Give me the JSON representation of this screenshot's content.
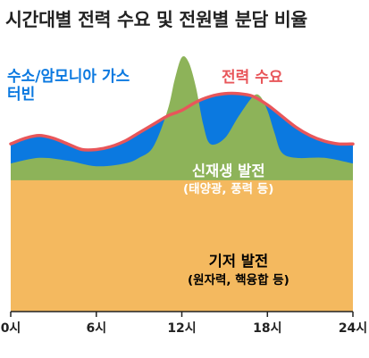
{
  "title": "시간대별 전력 수요 및 전원별 분담 비율",
  "chart_data": {
    "type": "area",
    "title": "시간대별 전력 수요 및 전원별 분담 비율",
    "x_ticks": [
      "0시",
      "6시",
      "12시",
      "18시",
      "24시"
    ],
    "x_tick_values": [
      0,
      6,
      12,
      18,
      24
    ],
    "xlim": [
      0,
      24
    ],
    "ylim": [
      0,
      100
    ],
    "grid": false,
    "series": [
      {
        "name": "기저 발전",
        "sub": "(원자력, 핵융합 등)",
        "color": "#F4B95F",
        "text_color": "#111111",
        "x": [
          0,
          24
        ],
        "y": [
          47,
          47
        ]
      },
      {
        "name": "신재생 발전",
        "sub": "(태양광, 풍력 등)",
        "color": "#8DB359",
        "text_color": "#ffffff",
        "x": [
          0,
          2,
          4,
          6,
          8,
          9,
          10,
          11,
          11.5,
          12,
          12.5,
          13,
          13.5,
          14,
          15,
          16,
          17,
          17.5,
          18,
          18.5,
          19,
          20,
          22,
          24
        ],
        "y": [
          53,
          55,
          54,
          52,
          53,
          55,
          59,
          72,
          83,
          91,
          89,
          80,
          67,
          60,
          62,
          70,
          77,
          77,
          72,
          64,
          57,
          55,
          55,
          53
        ]
      },
      {
        "name": "수소/암모니아 가스터빈",
        "color": "#0B79E0",
        "text_color": "#0B79E0",
        "x": [
          0,
          1,
          2,
          3,
          4,
          5,
          6,
          7,
          8,
          9,
          10,
          11,
          12,
          13,
          14,
          15,
          16,
          17,
          18,
          19,
          20,
          21,
          22,
          23,
          24
        ],
        "y": [
          60,
          62,
          63,
          62,
          60,
          58,
          58,
          59,
          61,
          64,
          67,
          70,
          72,
          75,
          77,
          78,
          78,
          77,
          74,
          70,
          66,
          63,
          61,
          60,
          60
        ]
      },
      {
        "name": "전력 수요",
        "color": "#E8565A",
        "text_color": "#E8565A",
        "x": [
          0,
          1,
          2,
          3,
          4,
          5,
          6,
          7,
          8,
          9,
          10,
          11,
          12,
          13,
          14,
          15,
          16,
          17,
          18,
          19,
          20,
          21,
          22,
          23,
          24
        ],
        "y": [
          60,
          62,
          63,
          62,
          60,
          58,
          58,
          59,
          61,
          64,
          67,
          70,
          72,
          75,
          77,
          78,
          78,
          77,
          74,
          70,
          66,
          63,
          61,
          60,
          60
        ]
      }
    ]
  }
}
